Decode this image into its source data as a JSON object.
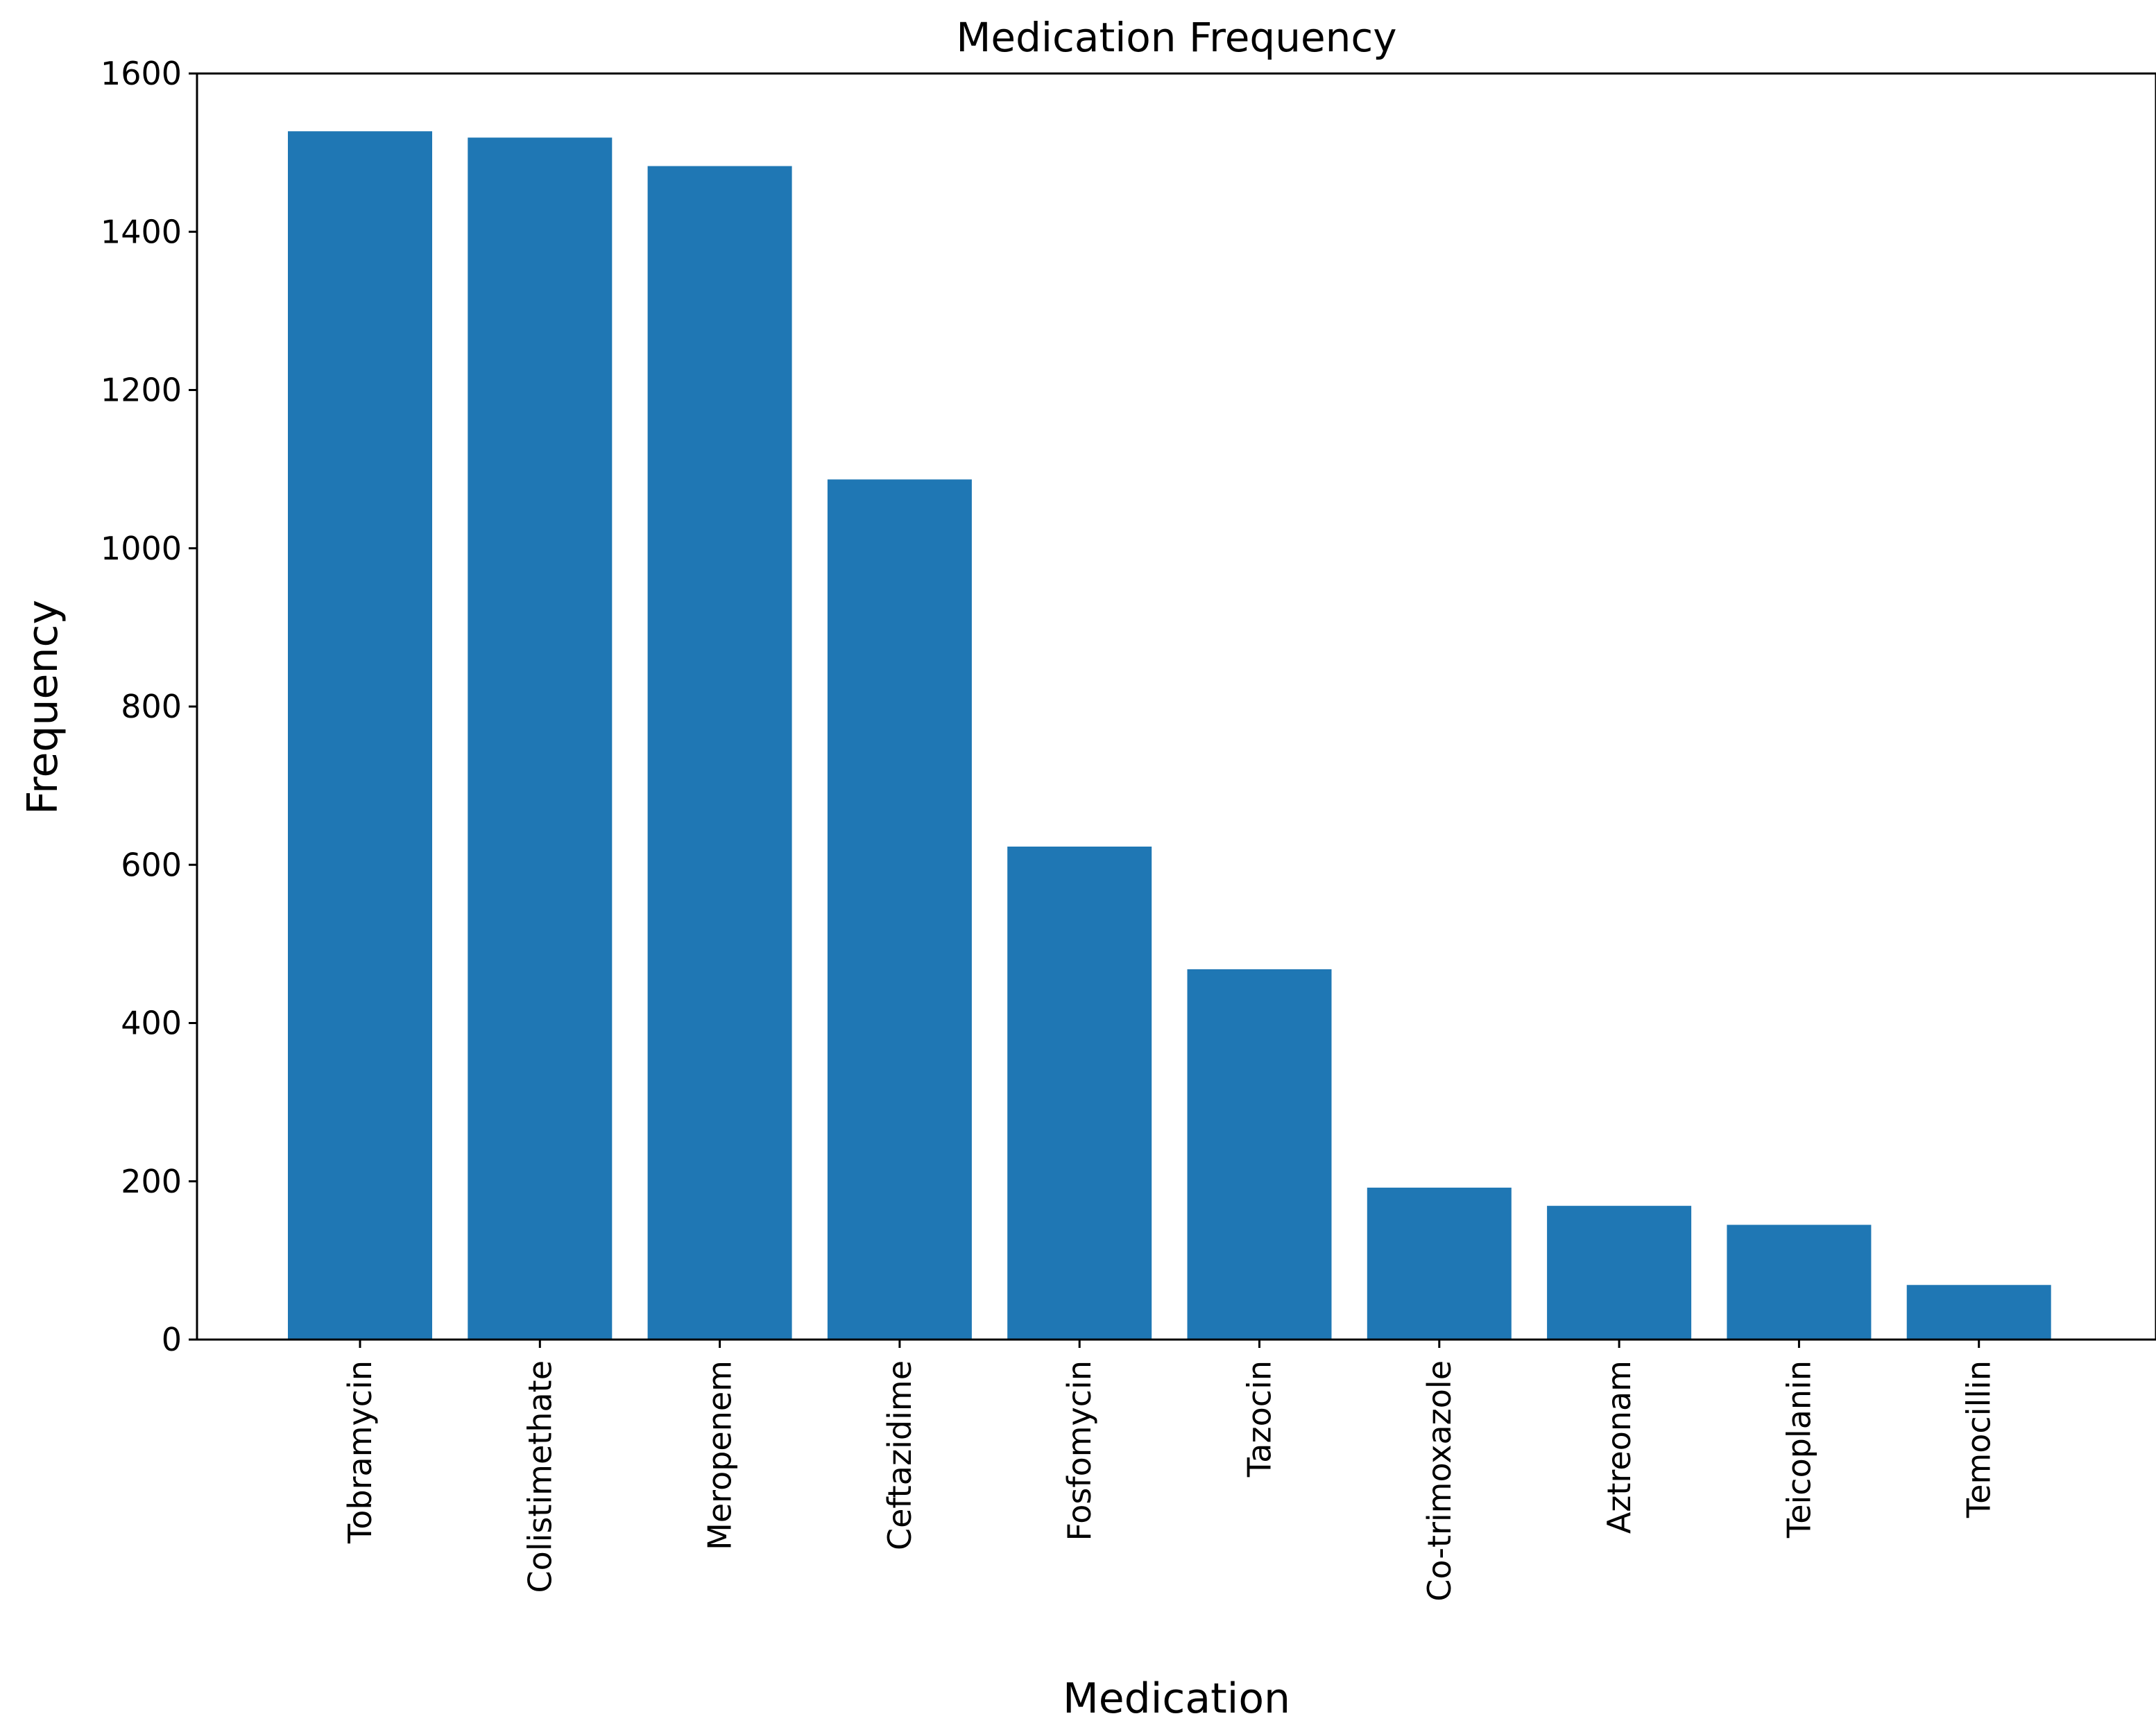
{
  "chart_data": {
    "type": "bar",
    "title": "Medication Frequency",
    "xlabel": "Medication",
    "ylabel": "Frequency",
    "categories": [
      "Tobramycin",
      "Colistimethate",
      "Meropenem",
      "Ceftazidime",
      "Fosfomycin",
      "Tazocin",
      "Co-trimoxazole",
      "Aztreonam",
      "Teicoplanin",
      "Temocillin"
    ],
    "values": [
      1527,
      1519,
      1483,
      1087,
      623,
      468,
      192,
      169,
      145,
      69
    ],
    "ylim": [
      0,
      1600
    ],
    "yticks": [
      "0",
      "200",
      "400",
      "600",
      "800",
      "1000",
      "1200",
      "1400",
      "1600"
    ],
    "bar_color": "#1f77b4",
    "grid": false,
    "legend": "none"
  }
}
